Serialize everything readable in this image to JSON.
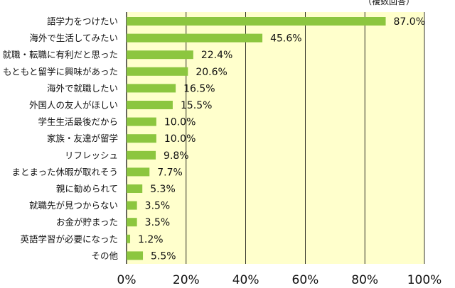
{
  "note": "（複数回答）",
  "chart_data": {
    "type": "bar",
    "orientation": "horizontal",
    "categories": [
      "語学力をつけたい",
      "海外で生活してみたい",
      "就職・転職に有利だと思った",
      "もともと留学に興味があった",
      "海外で就職したい",
      "外国人の友人がほしい",
      "学生生活最後だから",
      "家族・友達が留学",
      "リフレッシュ",
      "まとまった休暇が取れそう",
      "親に勧められて",
      "就職先が見つからない",
      "お金が貯まった",
      "英語学習が必要になった",
      "その他"
    ],
    "values": [
      87.0,
      45.6,
      22.4,
      20.6,
      16.5,
      15.5,
      10.0,
      10.0,
      9.8,
      7.7,
      5.3,
      3.5,
      3.5,
      1.2,
      5.5
    ],
    "value_labels": [
      "87.0%",
      "45.6%",
      "22.4%",
      "20.6%",
      "16.5%",
      "15.5%",
      "10.0%",
      "10.0%",
      "9.8%",
      "7.7%",
      "5.3%",
      "3.5%",
      "3.5%",
      "1.2%",
      "5.5%"
    ],
    "xlim": [
      0,
      100
    ],
    "xticks": [
      "0%",
      "20%",
      "40%",
      "60%",
      "80%",
      "100%"
    ],
    "grid": true,
    "colors": {
      "bar": "#8cc63f",
      "plot_background": "#ffffcc",
      "gridline": "#000000"
    }
  }
}
